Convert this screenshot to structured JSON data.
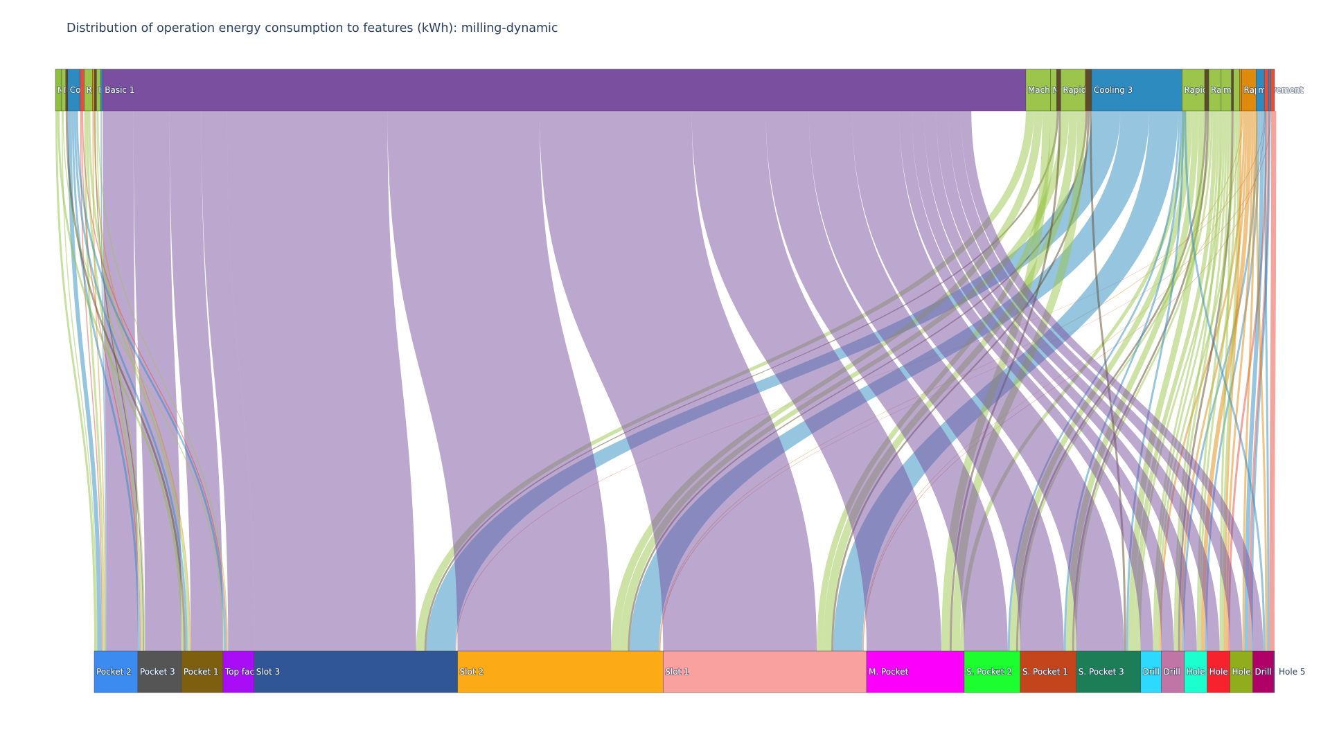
{
  "chart_data": {
    "type": "sankey",
    "title": "Distribution of operation energy consumption to features (kWh): milling-dynamic",
    "sources": [
      {
        "label": "M",
        "color": "#8fbf3f",
        "value": 3
      },
      {
        "label": "M",
        "color": "#9bc64b",
        "value": 2
      },
      {
        "label": "",
        "color": "#5d4a2a",
        "value": 1
      },
      {
        "label": "Cooling",
        "color": "#2e8bc0",
        "value": 6
      },
      {
        "label": "",
        "color": "#e74c3c",
        "value": 2
      },
      {
        "label": "Rapid",
        "color": "#9bc64b",
        "value": 4
      },
      {
        "label": "",
        "color": "#e08a0b",
        "value": 1
      },
      {
        "label": "",
        "color": "#5d4a2a",
        "value": 1
      },
      {
        "label": "Rapid",
        "color": "#9bc64b",
        "value": 2
      },
      {
        "label": "",
        "color": "#2e8bc0",
        "value": 1
      },
      {
        "label": "Basic 1",
        "color": "#7a4fa0",
        "value": 449
      },
      {
        "label": "Mach",
        "color": "#9bc64b",
        "value": 12
      },
      {
        "label": "M",
        "color": "#9bc64b",
        "value": 3
      },
      {
        "label": "",
        "color": "#5d4a2a",
        "value": 2
      },
      {
        "label": "Rapid",
        "color": "#9bc64b",
        "value": 12
      },
      {
        "label": "",
        "color": "#5d4a2a",
        "value": 3
      },
      {
        "label": "Cooling 3",
        "color": "#2e8bc0",
        "value": 44
      },
      {
        "label": "Rapid",
        "color": "#9bc64b",
        "value": 11
      },
      {
        "label": "",
        "color": "#5d4a2a",
        "value": 2
      },
      {
        "label": "Rapid",
        "color": "#9bc64b",
        "value": 6
      },
      {
        "label": "movem",
        "color": "#9bc64b",
        "value": 5
      },
      {
        "label": "",
        "color": "#5d4a2a",
        "value": 1
      },
      {
        "label": "",
        "color": "#9bc64b",
        "value": 3
      },
      {
        "label": "",
        "color": "#e08a0b",
        "value": 1
      },
      {
        "label": "Rapid",
        "color": "#e08a0b",
        "value": 7
      },
      {
        "label": "movement",
        "color": "#2e8bc0",
        "value": 4
      },
      {
        "label": "",
        "color": "#e74c3c",
        "value": 2
      },
      {
        "label": "",
        "color": "#2e8bc0",
        "value": 1
      },
      {
        "label": "",
        "color": "#e74c3c",
        "value": 2
      }
    ],
    "targets": [
      {
        "label": "Pocket 2",
        "color": "#3b8bf0",
        "value": 21
      },
      {
        "label": "Pocket 3",
        "color": "#555555",
        "value": 21
      },
      {
        "label": "Pocket 1",
        "color": "#7d5f0f",
        "value": 20
      },
      {
        "label": "Top fac",
        "color": "#a80df5",
        "value": 15
      },
      {
        "label": "Slot 3",
        "color": "#315697",
        "value": 98
      },
      {
        "label": "Slot 2",
        "color": "#fcab16",
        "value": 99
      },
      {
        "label": "Slot 1",
        "color": "#f8a19f",
        "value": 98
      },
      {
        "label": "M. Pocket",
        "color": "#fb00fb",
        "value": 47
      },
      {
        "label": "S. Pocket 2",
        "color": "#1cfe2f",
        "value": 27
      },
      {
        "label": "S. Pocket 1",
        "color": "#c4451c",
        "value": 27
      },
      {
        "label": "S. Pocket 3",
        "color": "#1b7e56",
        "value": 31
      },
      {
        "label": "Drill",
        "color": "#2ed9ff",
        "value": 10
      },
      {
        "label": "Drill",
        "color": "#c075a6",
        "value": 11
      },
      {
        "label": "Hole",
        "color": "#1cffce",
        "value": 11
      },
      {
        "label": "Hole",
        "color": "#f6222e",
        "value": 11
      },
      {
        "label": "Hole",
        "color": "#90ad1c",
        "value": 11
      },
      {
        "label": "Drill",
        "color": "#b00068",
        "value": 10
      },
      {
        "label": "Hole 5",
        "color": "#6a3d9a",
        "value": 0.5
      }
    ],
    "links": [
      [
        0,
        0,
        1
      ],
      [
        1,
        0,
        0.5
      ],
      [
        3,
        0,
        2
      ],
      [
        4,
        0,
        0.5
      ],
      [
        5,
        0,
        1
      ],
      [
        6,
        0,
        0.5
      ],
      [
        10,
        0,
        15
      ],
      [
        9,
        0,
        0.5
      ],
      [
        3,
        1,
        1
      ],
      [
        5,
        1,
        1
      ],
      [
        4,
        1,
        0.5
      ],
      [
        10,
        1,
        17.5
      ],
      [
        7,
        1,
        0.5
      ],
      [
        8,
        1,
        0.5
      ],
      [
        0,
        2,
        1
      ],
      [
        3,
        2,
        1
      ],
      [
        5,
        2,
        1
      ],
      [
        6,
        2,
        0.5
      ],
      [
        10,
        2,
        15.5
      ],
      [
        2,
        2,
        1
      ],
      [
        1,
        3,
        0.5
      ],
      [
        3,
        3,
        1
      ],
      [
        8,
        3,
        0.5
      ],
      [
        4,
        3,
        0.5
      ],
      [
        10,
        3,
        12.5
      ],
      [
        10,
        4,
        78
      ],
      [
        11,
        4,
        4
      ],
      [
        16,
        4,
        14
      ],
      [
        13,
        4,
        1
      ],
      [
        26,
        4,
        0.3
      ],
      [
        10,
        5,
        74
      ],
      [
        11,
        5,
        4
      ],
      [
        16,
        5,
        14
      ],
      [
        14,
        5,
        4
      ],
      [
        15,
        5,
        1
      ],
      [
        24,
        5,
        0.4
      ],
      [
        28,
        5,
        0.3
      ],
      [
        10,
        6,
        74
      ],
      [
        12,
        6,
        3
      ],
      [
        16,
        6,
        14
      ],
      [
        14,
        6,
        4
      ],
      [
        15,
        6,
        1
      ],
      [
        24,
        6,
        0.3
      ],
      [
        26,
        6,
        0.3
      ],
      [
        10,
        7,
        36
      ],
      [
        11,
        7,
        4
      ],
      [
        14,
        7,
        4
      ],
      [
        13,
        7,
        1
      ],
      [
        17,
        7,
        2
      ],
      [
        10,
        8,
        21
      ],
      [
        17,
        8,
        3
      ],
      [
        18,
        8,
        1
      ],
      [
        16,
        8,
        1
      ],
      [
        19,
        8,
        1
      ],
      [
        10,
        9,
        21
      ],
      [
        17,
        9,
        3
      ],
      [
        18,
        9,
        1
      ],
      [
        16,
        9,
        1
      ],
      [
        19,
        9,
        1
      ],
      [
        10,
        10,
        23
      ],
      [
        17,
        10,
        3
      ],
      [
        16,
        10,
        1
      ],
      [
        19,
        10,
        2
      ],
      [
        15,
        10,
        1
      ],
      [
        20,
        10,
        1
      ],
      [
        10,
        11,
        6
      ],
      [
        19,
        11,
        1
      ],
      [
        20,
        11,
        1
      ],
      [
        22,
        11,
        1
      ],
      [
        24,
        11,
        1
      ],
      [
        10,
        12,
        6
      ],
      [
        19,
        12,
        1
      ],
      [
        20,
        12,
        1
      ],
      [
        21,
        12,
        1
      ],
      [
        24,
        12,
        1
      ],
      [
        25,
        12,
        1
      ],
      [
        10,
        13,
        6
      ],
      [
        20,
        13,
        1
      ],
      [
        22,
        13,
        1
      ],
      [
        24,
        13,
        2
      ],
      [
        25,
        13,
        1
      ],
      [
        10,
        14,
        6
      ],
      [
        20,
        14,
        1
      ],
      [
        22,
        14,
        1
      ],
      [
        24,
        14,
        1
      ],
      [
        26,
        14,
        1
      ],
      [
        23,
        14,
        1
      ],
      [
        10,
        15,
        6
      ],
      [
        24,
        15,
        1
      ],
      [
        25,
        15,
        2
      ],
      [
        26,
        15,
        1
      ],
      [
        27,
        15,
        1
      ],
      [
        10,
        16,
        5
      ],
      [
        24,
        16,
        1
      ],
      [
        25,
        16,
        1
      ],
      [
        28,
        16,
        2
      ],
      [
        16,
        16,
        1
      ],
      [
        28,
        17,
        0.5
      ]
    ]
  }
}
